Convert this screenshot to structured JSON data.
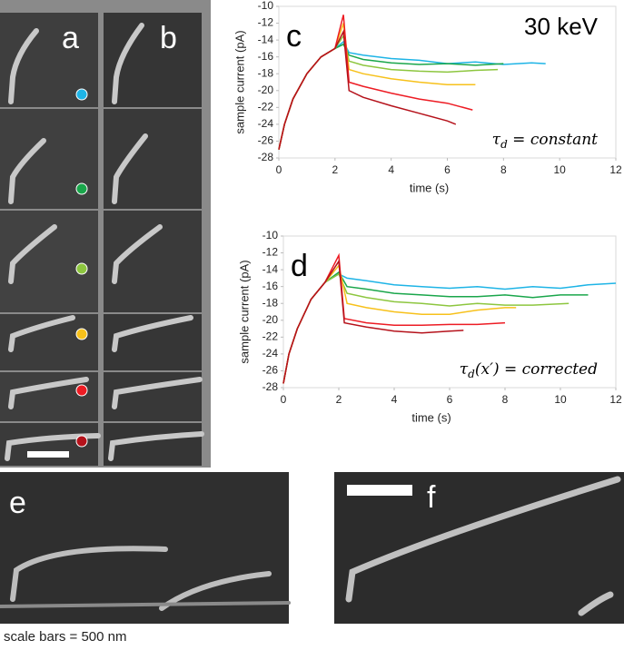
{
  "figure": {
    "panel_labels": [
      "a",
      "b",
      "e",
      "f"
    ],
    "caption": "scale bars = 500 nm"
  },
  "chart_data": [
    {
      "type": "line",
      "panel_label": "c",
      "annotation": "30 keV",
      "formula": {
        "symbol": "τ",
        "subscript": "d",
        "rest": " = constant"
      },
      "x_label": "time (s)",
      "y_label": "sample current (pA)",
      "xlim": [
        0,
        12
      ],
      "xticks": [
        0,
        2,
        4,
        6,
        8,
        10,
        12
      ],
      "ylim": [
        -28,
        -10
      ],
      "yticks": [
        -28,
        -26,
        -24,
        -22,
        -20,
        -18,
        -16,
        -14,
        -12,
        -10
      ],
      "series": [
        {
          "color": "#1eb4e6",
          "x": [
            0,
            0.2,
            0.5,
            1,
            1.5,
            2,
            2.3,
            2.5,
            3,
            4,
            5,
            6,
            7,
            8,
            9,
            9.5
          ],
          "values": [
            -27,
            -24,
            -21,
            -18,
            -16,
            -15,
            -14.2,
            -15.5,
            -15.8,
            -16.2,
            -16.4,
            -16.8,
            -16.6,
            -16.9,
            -16.7,
            -16.8
          ]
        },
        {
          "color": "#1aa64b",
          "x": [
            0,
            0.2,
            0.5,
            1,
            1.5,
            2,
            2.3,
            2.5,
            3,
            4,
            5,
            6,
            7,
            8
          ],
          "values": [
            -27,
            -24,
            -21,
            -18,
            -16,
            -15,
            -14.5,
            -15.8,
            -16.3,
            -16.7,
            -16.9,
            -16.8,
            -17,
            -16.8
          ]
        },
        {
          "color": "#8dc63f",
          "x": [
            0,
            0.2,
            0.5,
            1,
            1.5,
            2,
            2.3,
            2.5,
            3,
            4,
            5,
            6,
            7,
            7.8
          ],
          "values": [
            -27,
            -24,
            -21,
            -18,
            -16,
            -15,
            -13.5,
            -16.5,
            -17,
            -17.5,
            -17.7,
            -17.8,
            -17.6,
            -17.5
          ]
        },
        {
          "color": "#f7c11b",
          "x": [
            0,
            0.2,
            0.5,
            1,
            1.5,
            2,
            2.3,
            2.5,
            3,
            4,
            5,
            6,
            7
          ],
          "values": [
            -27,
            -24,
            -21,
            -18,
            -16,
            -15,
            -12,
            -17.5,
            -18,
            -18.6,
            -19,
            -19.3,
            -19.3
          ]
        },
        {
          "color": "#ed1c24",
          "x": [
            0,
            0.2,
            0.5,
            1,
            1.5,
            2,
            2.3,
            2.5,
            3,
            4,
            5,
            6,
            6.9
          ],
          "values": [
            -27,
            -24,
            -21,
            -18,
            -16,
            -15,
            -11,
            -19,
            -19.5,
            -20.3,
            -21,
            -21.5,
            -22.3
          ]
        },
        {
          "color": "#b5121b",
          "x": [
            0,
            0.2,
            0.5,
            1,
            1.5,
            2,
            2.3,
            2.5,
            3,
            4,
            5,
            6,
            6.3
          ],
          "values": [
            -27,
            -24,
            -21,
            -18,
            -16,
            -15,
            -13,
            -20,
            -20.8,
            -21.8,
            -22.7,
            -23.6,
            -24
          ]
        }
      ]
    },
    {
      "type": "line",
      "panel_label": "d",
      "formula": {
        "symbol": "τ",
        "subscript": "d",
        "rest": "(x′) = corrected"
      },
      "x_label": "time (s)",
      "y_label": "sample current (pA)",
      "xlim": [
        0,
        12
      ],
      "xticks": [
        0,
        2,
        4,
        6,
        8,
        10,
        12
      ],
      "ylim": [
        -28,
        -10
      ],
      "yticks": [
        -28,
        -26,
        -24,
        -22,
        -20,
        -18,
        -16,
        -14,
        -12,
        -10
      ],
      "series": [
        {
          "color": "#1eb4e6",
          "x": [
            0,
            0.2,
            0.5,
            1,
            1.5,
            2,
            2.3,
            3,
            4,
            5,
            6,
            7,
            8,
            9,
            10,
            11,
            12
          ],
          "values": [
            -27.5,
            -24,
            -21,
            -17.5,
            -15.5,
            -14.5,
            -15,
            -15.3,
            -15.8,
            -16,
            -16.2,
            -16,
            -16.3,
            -16,
            -16.2,
            -15.8,
            -15.6
          ]
        },
        {
          "color": "#1aa64b",
          "x": [
            0,
            0.2,
            0.5,
            1,
            1.5,
            2,
            2.3,
            3,
            4,
            5,
            6,
            7,
            8,
            9,
            10,
            11
          ],
          "values": [
            -27.5,
            -24,
            -21,
            -17.5,
            -15.5,
            -14.3,
            -16,
            -16.3,
            -16.8,
            -17,
            -17.2,
            -17.2,
            -17,
            -17.3,
            -17,
            -17
          ]
        },
        {
          "color": "#8dc63f",
          "x": [
            0,
            0.2,
            0.5,
            1,
            1.5,
            2,
            2.3,
            3,
            4,
            5,
            6,
            7,
            8,
            9,
            10.3
          ],
          "values": [
            -27.5,
            -24,
            -21,
            -17.5,
            -15.5,
            -14.5,
            -16.8,
            -17.3,
            -17.8,
            -18,
            -18.3,
            -18,
            -18.2,
            -18.2,
            -18
          ]
        },
        {
          "color": "#f7c11b",
          "x": [
            0,
            0.2,
            0.5,
            1,
            1.5,
            2,
            2.3,
            3,
            4,
            5,
            6,
            7,
            8,
            8.4
          ],
          "values": [
            -27.5,
            -24,
            -21,
            -17.5,
            -15.5,
            -13.5,
            -18,
            -18.5,
            -19,
            -19.3,
            -19.3,
            -18.8,
            -18.5,
            -18.5
          ]
        },
        {
          "color": "#ed1c24",
          "x": [
            0,
            0.2,
            0.5,
            1,
            1.5,
            2,
            2.2,
            3,
            4,
            5,
            6,
            7,
            8
          ],
          "values": [
            -27.5,
            -24,
            -21,
            -17.5,
            -15.5,
            -12.3,
            -19.8,
            -20.3,
            -20.6,
            -20.6,
            -20.5,
            -20.5,
            -20.3
          ]
        },
        {
          "color": "#b5121b",
          "x": [
            0,
            0.2,
            0.5,
            1,
            1.5,
            2,
            2.2,
            3,
            4,
            5,
            6,
            6.5
          ],
          "values": [
            -27.5,
            -24,
            -21,
            -17.5,
            -15.5,
            -13,
            -20.3,
            -20.8,
            -21.3,
            -21.5,
            -21.3,
            -21.2
          ]
        }
      ]
    }
  ]
}
